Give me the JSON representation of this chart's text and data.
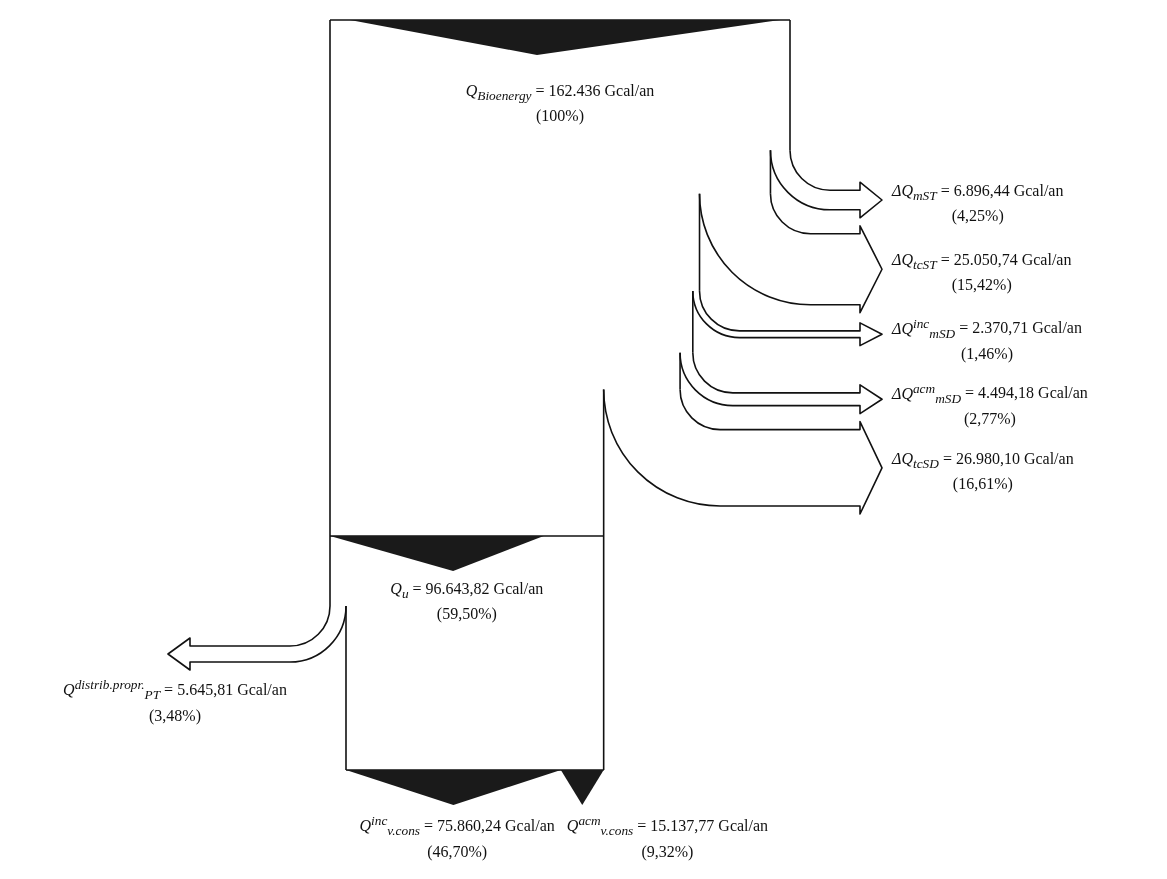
{
  "chart_data": {
    "type": "other",
    "categories": [
      "Q$_{Bioenergy}$",
      "ΔQ$_{mST}$",
      "ΔQ$_{tcST}$",
      "ΔQ$^{inc}$$_{mSD}$",
      "ΔQ$^{acm}$$_{mSD}$",
      "ΔQ$_{tcSD}$",
      "Q$_{u}$",
      "Q$^{distrib.propr.}$$_{PT}$",
      "Q$^{inc}$$_{v.cons}$",
      "Q$^{acm}$$_{v.cons}$"
    ],
    "series": [
      {
        "values": [
          162436,
          6896.44,
          25050.74,
          2370.71,
          4494.18,
          26980.1,
          96643.82,
          5645.81,
          75860.24,
          15137.77
        ],
        "value_labels": [
          "= 162.436 Gcal/an",
          "= 6.896,44 Gcal/an",
          "= 25.050,74 Gcal/an",
          "= 2.370,71 Gcal/an",
          "= 4.494,18 Gcal/an",
          "= 26.980,10 Gcal/an",
          "= 96.643,82 Gcal/an",
          "= 5.645,81 Gcal/an",
          "= 75.860,24 Gcal/an",
          "= 15.137,77 Gcal/an"
        ]
      },
      {
        "values": [
          100,
          4.25,
          15.42,
          1.46,
          2.77,
          16.61,
          59.5,
          3.48,
          46.7,
          9.32
        ],
        "value_labels": [
          "(100%)",
          "(4,25%)",
          "(15,42%)",
          "(1,46%)",
          "(2,77%)",
          "(16,61%)",
          "(59,50%)",
          "(3,48%)",
          "(46,70%)",
          "(9,32%)"
        ]
      }
    ]
  }
}
